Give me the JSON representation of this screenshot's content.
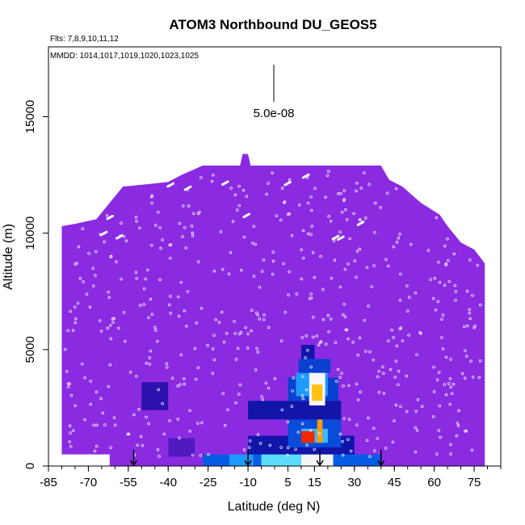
{
  "chart_data": {
    "type": "heatmap",
    "title": "ATOM3 Northbound DU_GEOS5",
    "flights_note": "Flts: 7,8,9,10,11,12",
    "dates_note": "MMDD: 1014,1017,1019,1020,1023,1025",
    "scale_label": "5.0e-08",
    "xlabel": "Latitude (deg N)",
    "ylabel": "Altitude (m)",
    "xlim": [
      -85,
      85
    ],
    "ylim": [
      0,
      18000
    ],
    "x_ticks": [
      -85,
      -70,
      -55,
      -40,
      -25,
      -10,
      5,
      15,
      30,
      45,
      60,
      75
    ],
    "x_minor_step": 5,
    "y_ticks": [
      0,
      5000,
      10000,
      15000
    ],
    "background_color": "#8a2be2",
    "coverage_envelope": [
      {
        "lat": -80,
        "top": 10300
      },
      {
        "lat": -75,
        "top": 10400
      },
      {
        "lat": -67,
        "top": 10600
      },
      {
        "lat": -62,
        "top": 11300
      },
      {
        "lat": -57,
        "top": 12000
      },
      {
        "lat": -48,
        "top": 12100
      },
      {
        "lat": -40,
        "top": 12200
      },
      {
        "lat": -35,
        "top": 12500
      },
      {
        "lat": -27,
        "top": 12900
      },
      {
        "lat": -20,
        "top": 12900
      },
      {
        "lat": -13,
        "top": 12900
      },
      {
        "lat": -12,
        "top": 13400
      },
      {
        "lat": -10,
        "top": 13400
      },
      {
        "lat": -9,
        "top": 12900
      },
      {
        "lat": 20,
        "top": 12900
      },
      {
        "lat": 26,
        "top": 12900
      },
      {
        "lat": 40,
        "top": 12900
      },
      {
        "lat": 43,
        "top": 12300
      },
      {
        "lat": 48,
        "top": 12000
      },
      {
        "lat": 55,
        "top": 11300
      },
      {
        "lat": 62,
        "top": 10800
      },
      {
        "lat": 65,
        "top": 10300
      },
      {
        "lat": 70,
        "top": 9600
      },
      {
        "lat": 75,
        "top": 9300
      },
      {
        "lat": 79,
        "top": 8700
      }
    ],
    "missing_region": {
      "lat": [
        -85,
        -62
      ],
      "alt": [
        0,
        500
      ]
    },
    "dust_cells": [
      {
        "lat": [
          -27,
          40
        ],
        "alt": [
          0,
          500
        ],
        "value": 0.25
      },
      {
        "lat": [
          -17,
          -8
        ],
        "alt": [
          0,
          500
        ],
        "value": 0.35
      },
      {
        "lat": [
          -5,
          10
        ],
        "alt": [
          0,
          500
        ],
        "value": 0.45
      },
      {
        "lat": [
          10,
          22
        ],
        "alt": [
          0,
          500
        ],
        "value": 0.55
      },
      {
        "lat": [
          -10,
          30
        ],
        "alt": [
          500,
          1300
        ],
        "value": 0.12
      },
      {
        "lat": [
          5,
          25
        ],
        "alt": [
          800,
          2000
        ],
        "value": 0.22
      },
      {
        "lat": [
          10,
          20
        ],
        "alt": [
          1000,
          1600
        ],
        "value": 0.4
      },
      {
        "lat": [
          10,
          15
        ],
        "alt": [
          1000,
          1500
        ],
        "value": 0.95
      },
      {
        "lat": [
          16,
          18
        ],
        "alt": [
          1000,
          2000
        ],
        "value": 0.8
      },
      {
        "lat": [
          -10,
          25
        ],
        "alt": [
          2000,
          2800
        ],
        "value": 0.12
      },
      {
        "lat": [
          5,
          24
        ],
        "alt": [
          2800,
          3800
        ],
        "value": 0.2
      },
      {
        "lat": [
          8,
          20
        ],
        "alt": [
          3000,
          4000
        ],
        "value": 0.35
      },
      {
        "lat": [
          13,
          19
        ],
        "alt": [
          2600,
          4200
        ],
        "value": 0.55
      },
      {
        "lat": [
          14,
          18
        ],
        "alt": [
          2800,
          3500
        ],
        "value": 0.75
      },
      {
        "lat": [
          9,
          21
        ],
        "alt": [
          4000,
          4600
        ],
        "value": 0.2
      },
      {
        "lat": [
          10,
          15
        ],
        "alt": [
          4600,
          5200
        ],
        "value": 0.12
      },
      {
        "lat": [
          -50,
          -40
        ],
        "alt": [
          2400,
          3600
        ],
        "value": 0.08
      },
      {
        "lat": [
          -40,
          -30
        ],
        "alt": [
          400,
          1200
        ],
        "value": 0.05
      }
    ],
    "profile_markers": [
      {
        "lat": -53
      },
      {
        "lat": -10
      },
      {
        "lat": 17
      },
      {
        "lat": 40
      }
    ]
  }
}
